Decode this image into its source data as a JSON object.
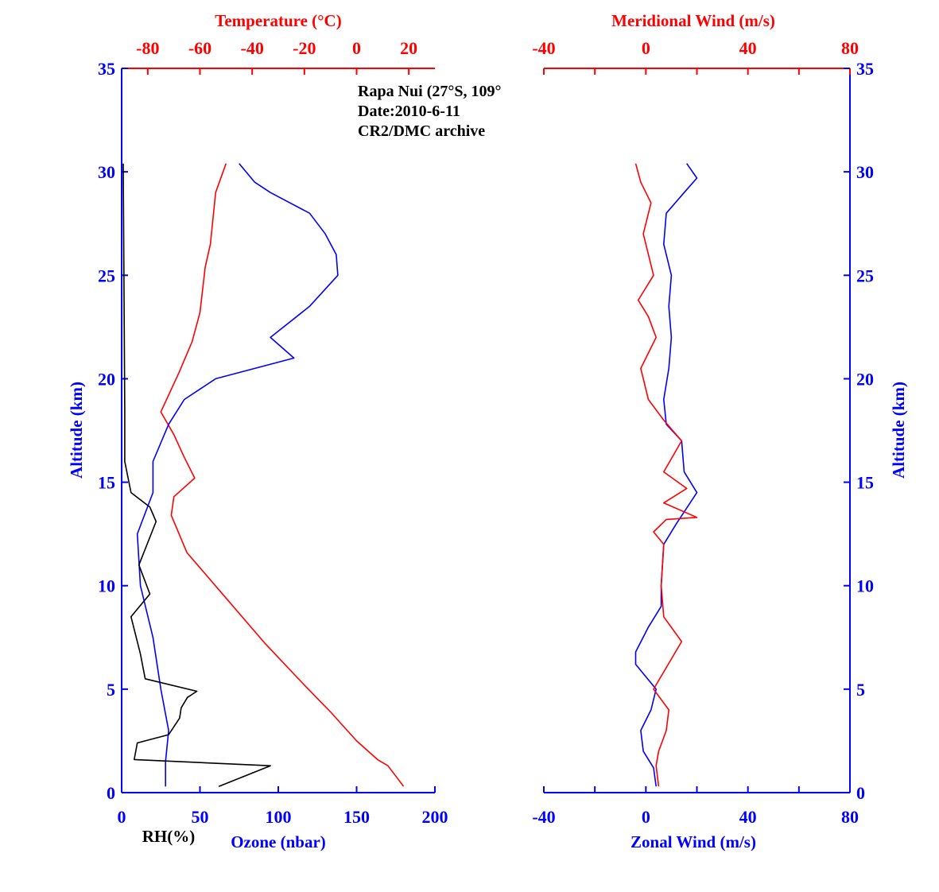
{
  "colors": {
    "blue": "#0000ff",
    "red": "#ff0000",
    "black": "#000000"
  },
  "annotation": [
    "Rapa Nui (27°S, 109°",
    "Date:2010-6-11",
    "CR2/DMC archive"
  ],
  "chart_data": [
    {
      "type": "line",
      "title": "",
      "ylabel": "Altitude (km)",
      "ylim": [
        0,
        35
      ],
      "yticks": [
        0,
        5,
        10,
        15,
        20,
        25,
        30,
        35
      ],
      "x_bottom": {
        "label": "Ozone (nbar)",
        "secondary_label": "RH(%)",
        "lim": [
          0,
          200
        ],
        "ticks": [
          0,
          50,
          100,
          150,
          200
        ]
      },
      "x_top": {
        "label": "Temperature (°C)",
        "lim": [
          -90,
          30
        ],
        "ticks": [
          -80,
          -60,
          -40,
          -20,
          0,
          20
        ]
      },
      "series": [
        {
          "name": "Temperature (°C)",
          "axis": "top",
          "color": "red",
          "x": [
            18,
            12,
            8,
            0,
            -10,
            -20,
            -35,
            -50,
            -65,
            -71,
            -70,
            -62,
            -66,
            -70,
            -75,
            -68,
            -63,
            -60,
            -58,
            -56,
            -54,
            -50
          ],
          "y": [
            0.3,
            1.3,
            1.6,
            2.5,
            3.9,
            5.2,
            7.2,
            9.4,
            11.6,
            13.4,
            14.3,
            15.2,
            16.2,
            17.3,
            18.4,
            20.3,
            21.8,
            23.2,
            25.4,
            26.5,
            29.0,
            30.4
          ]
        },
        {
          "name": "Ozone (nbar)",
          "axis": "bottom",
          "color": "blue",
          "x": [
            28,
            28,
            30,
            25,
            20,
            12,
            10,
            20,
            20,
            30,
            40,
            60,
            110,
            95,
            120,
            138,
            137,
            130,
            120,
            95,
            85,
            75
          ],
          "y": [
            0.3,
            1.5,
            3.0,
            5.0,
            7.5,
            10.0,
            12.5,
            14.5,
            16.0,
            17.8,
            19.0,
            20.0,
            21.0,
            22.0,
            23.5,
            25.0,
            26.0,
            27.0,
            28.0,
            29.0,
            29.5,
            30.4
          ]
        },
        {
          "name": "RH(%)",
          "axis": "bottom",
          "color": "black",
          "x": [
            62,
            95,
            8,
            10,
            30,
            37,
            38,
            42,
            48,
            15,
            12,
            6,
            18,
            11,
            22,
            18,
            6,
            2,
            2,
            1
          ],
          "y": [
            0.3,
            1.3,
            1.6,
            2.4,
            2.8,
            3.6,
            4.1,
            4.6,
            4.9,
            5.5,
            6.7,
            8.5,
            9.6,
            11.0,
            13.1,
            13.8,
            14.5,
            16.0,
            18.5,
            30.4
          ]
        }
      ]
    },
    {
      "type": "line",
      "title": "",
      "ylabel": "Altitude (km)",
      "ylim": [
        0,
        35
      ],
      "yticks": [
        0,
        5,
        10,
        15,
        20,
        25,
        30,
        35
      ],
      "x_bottom": {
        "label": "Zonal Wind (m/s)",
        "lim": [
          -40,
          80
        ],
        "ticks": [
          -40,
          0,
          40,
          80
        ]
      },
      "x_top": {
        "label": "Meridional Wind (m/s)",
        "lim": [
          -40,
          80
        ],
        "ticks": [
          -40,
          0,
          40,
          80
        ]
      },
      "series": [
        {
          "name": "Zonal Wind (m/s)",
          "axis": "bottom",
          "color": "blue",
          "x": [
            4,
            3,
            -1,
            -2,
            2,
            4,
            -4,
            -4,
            1,
            6,
            6,
            7,
            12,
            20,
            15,
            14,
            8,
            7,
            9,
            10,
            9,
            10,
            7,
            8,
            15,
            20,
            16
          ],
          "y": [
            0.3,
            1.2,
            2.0,
            3.0,
            4.0,
            5.0,
            6.2,
            6.8,
            8.0,
            9.0,
            10.0,
            12.0,
            13.0,
            14.5,
            15.5,
            17.0,
            17.8,
            19.0,
            20.5,
            22.0,
            23.5,
            25.0,
            26.5,
            28.0,
            29.0,
            29.7,
            30.4
          ]
        },
        {
          "name": "Meridional Wind (m/s)",
          "axis": "top",
          "color": "red",
          "x": [
            5,
            4,
            5,
            8,
            9,
            3,
            14,
            7,
            6,
            7,
            3,
            8,
            20,
            7,
            16,
            7,
            14,
            7,
            1,
            -2,
            4,
            1,
            -3,
            3,
            -1,
            2,
            -2,
            -4
          ],
          "y": [
            0.3,
            1.3,
            2.0,
            3.0,
            4.0,
            5.0,
            7.3,
            8.5,
            10.0,
            12.0,
            12.6,
            13.2,
            13.3,
            14.0,
            14.7,
            15.5,
            17.0,
            18.0,
            19.0,
            20.5,
            22.0,
            23.0,
            23.8,
            25.0,
            27.0,
            28.5,
            29.5,
            30.4
          ]
        }
      ]
    }
  ]
}
